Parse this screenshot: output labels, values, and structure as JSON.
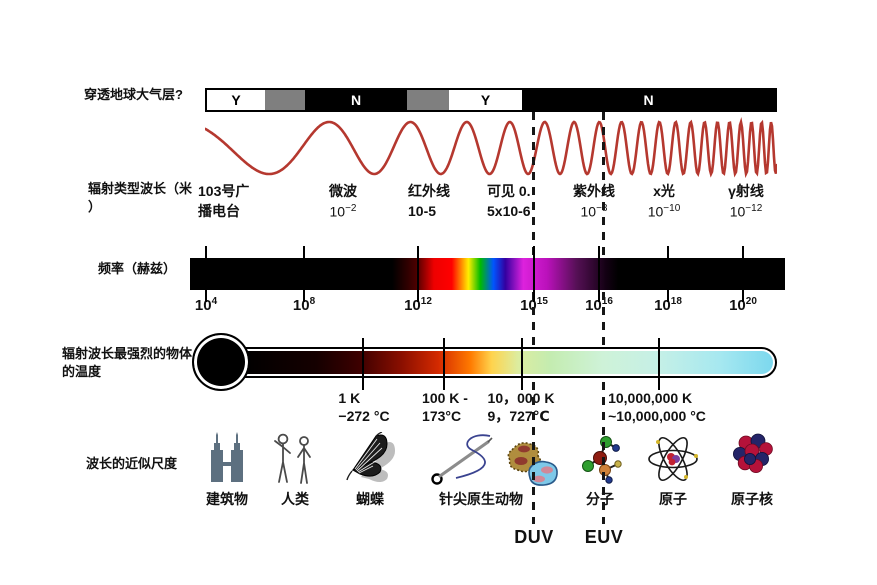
{
  "atmosphere": {
    "label": "穿透地球大气层?",
    "segments": [
      {
        "text": "Y"
      },
      {
        "text": ""
      },
      {
        "text": "N"
      },
      {
        "text": ""
      },
      {
        "text": "Y"
      },
      {
        "text": "N"
      }
    ]
  },
  "radiation": {
    "label_line1": "辐射类型波长（米",
    "label_line2": "）",
    "bands": [
      {
        "line1": "103号广",
        "line2": "播电台"
      },
      {
        "line1": "微波",
        "base": "10",
        "sup": "−2"
      },
      {
        "line1": "红外线",
        "line2": "10-5"
      },
      {
        "line1": "可见 0.",
        "line2": "5x10-6"
      },
      {
        "line1": "紫外线",
        "base": "10",
        "sup": "−8"
      },
      {
        "line1": "x光",
        "base": "10",
        "sup": "−10"
      },
      {
        "line1": "γ射线",
        "base": "10",
        "sup": "−12"
      }
    ]
  },
  "frequency": {
    "label": "频率（赫兹）",
    "ticks": [
      {
        "base": "10",
        "sup": "4"
      },
      {
        "base": "10",
        "sup": "8"
      },
      {
        "base": "10",
        "sup": "12"
      },
      {
        "base": "10",
        "sup": "15"
      },
      {
        "base": "10",
        "sup": "16"
      },
      {
        "base": "10",
        "sup": "18"
      },
      {
        "base": "10",
        "sup": "20"
      }
    ]
  },
  "temperature": {
    "label_line1": "辐射波长最强烈的物体",
    "label_line2": "的温度",
    "ticks": [
      {
        "line1": "1 K",
        "line2": "−272 °C"
      },
      {
        "line1": "100 K -",
        "line2": "173°C"
      },
      {
        "line1": "10，000 K",
        "line2": "9，727℃"
      },
      {
        "line1": "10,000,000 K",
        "line2": "~10,000,000 °C"
      }
    ]
  },
  "scale": {
    "label": "波长的近似尺度",
    "items": [
      {
        "label": "建筑物",
        "icon": "buildings-icon"
      },
      {
        "label": "人类",
        "icon": "humans-icon"
      },
      {
        "label": "蝴蝶",
        "icon": "butterfly-icon"
      },
      {
        "label": "针尖原生动物",
        "icon": "needle-protozoa-icon"
      },
      {
        "label": "分子",
        "icon": "molecule-icon"
      },
      {
        "label": "原子",
        "icon": "atom-icon"
      },
      {
        "label": "原子核",
        "icon": "nucleus-icon"
      }
    ]
  },
  "markers": [
    {
      "label": "DUV"
    },
    {
      "label": "EUV"
    }
  ],
  "colors": {
    "wave": "#b5382f",
    "segment_gray": "#7f7f7f",
    "spectrum_magenta": "#cc22cc",
    "thermo_end_cyan": "#7cd8ee",
    "towers": "#5d7080"
  }
}
